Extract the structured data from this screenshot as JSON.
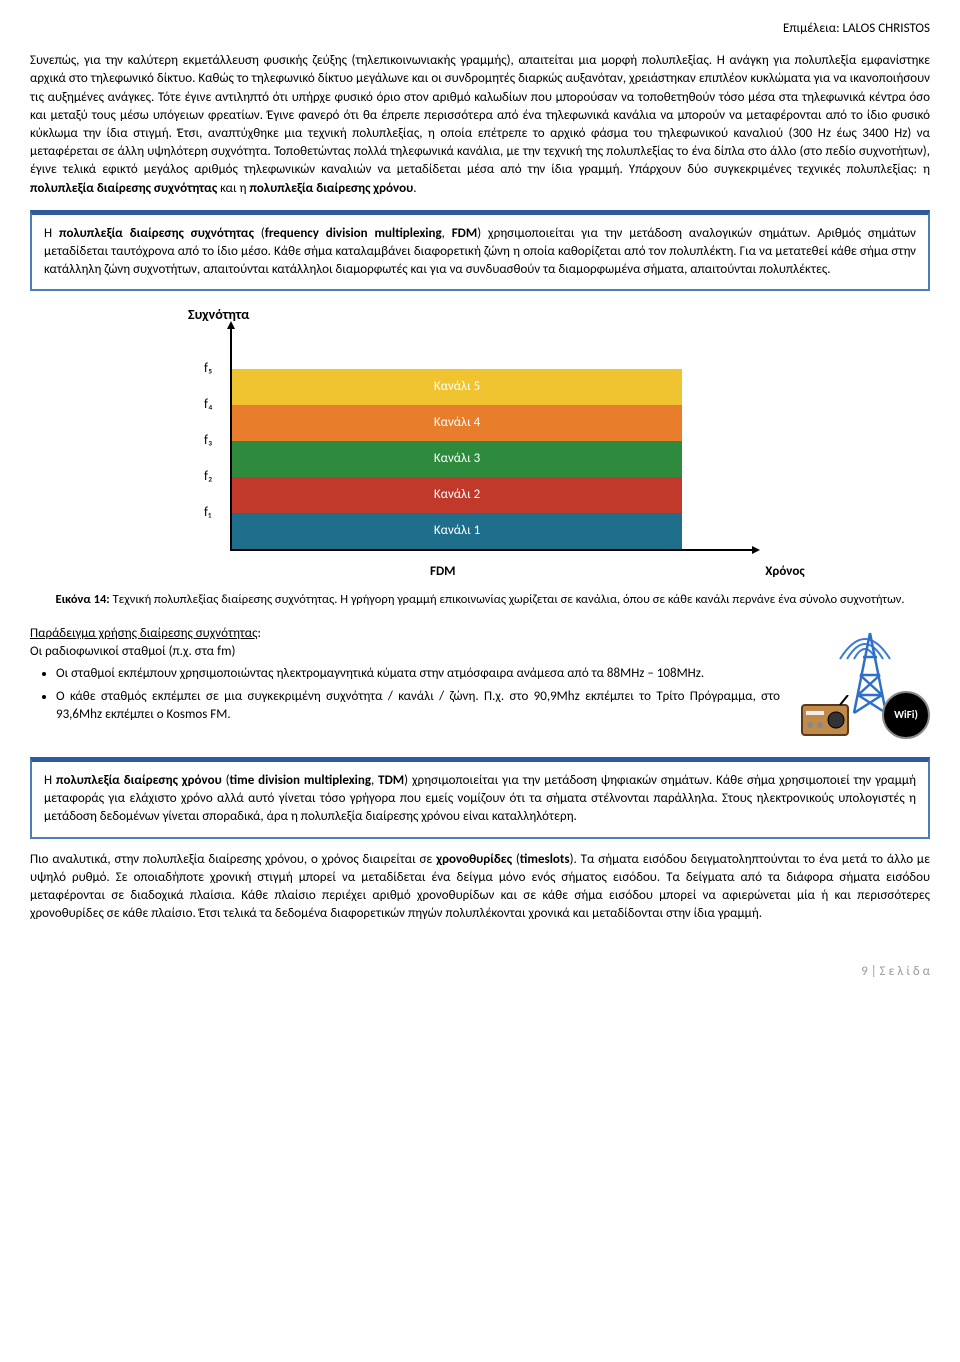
{
  "header": {
    "prefix": "Επιμέλεια:",
    "name": "LALOS CHRISTOS"
  },
  "para1": "Συνεπώς, για την καλύτερη εκμετάλλευση φυσικής ζεύξης (τηλεπικοινωνιακής γραμμής), απαιτείται μια μορφή πολυπλεξίας. Η ανάγκη για πολυπλεξία εμφανίστηκε αρχικά στο τηλεφωνικό δίκτυο. Καθώς το τηλεφωνικό δίκτυο μεγάλωνε και οι συνδρομητές διαρκώς αυξανόταν, χρειάστηκαν επιπλέον κυκλώματα για να ικανοποιήσουν τις αυξημένες ανάγκες. Τότε έγινε αντιληπτό ότι υπήρχε φυσικό όριο στον αριθμό καλωδίων που μπορούσαν να τοποθετηθούν τόσο μέσα στα τηλεφωνικά κέντρα όσο και μεταξύ τους μέσω υπόγειων φρεατίων. Έγινε φανερό ότι θα έπρεπε περισσότερα από ένα τηλεφωνικά κανάλια να μπορούν να μεταφέρονται από το ίδιο φυσικό κύκλωμα την ίδια στιγμή. Έτσι, αναπτύχθηκε μια τεχνική πολυπλεξίας, η οποία επέτρεπε το αρχικό φάσμα του τηλεφωνικού καναλιού (300 Hz έως 3400 Hz) να μεταφέρεται σε άλλη υψηλότερη συχνότητα. Τοποθετώντας πολλά τηλεφωνικά κανάλια, με την τεχνική της πολυπλεξίας το ένα δίπλα στο άλλο (στο πεδίο συχνοτήτων), έγινε τελικά εφικτό μεγάλος αριθμός τηλεφωνικών καναλιών να μεταδίδεται μέσα από την ίδια γραμμή. Υπάρχουν δύο συγκεκριμένες τεχνικές πολυπλεξίας: η ",
  "term1": "πολυπλεξία διαίρεσης συχνότητας",
  "para1_and": " και η ",
  "term2": "πολυπλεξία διαίρεσης χρόνου",
  "callout_fdm": {
    "pre": "Η ",
    "bold": "πολυπλεξία διαίρεσης συχνότητας",
    "paren": " (",
    "bold2": "frequency division multiplexing",
    "sep": ", ",
    "bold3": "FDM",
    "post": ") χρησιμοποιείται για την μετάδοση αναλογικών σημάτων. Αριθμός σημάτων μεταδίδεται ταυτόχρονα από το ίδιο μέσο. Κάθε σήμα καταλαμβάνει διαφορετική ζώνη η οποία καθορίζεται από τον πολυπλέκτη. Για να μετατεθεί κάθε σήμα στην κατάλληλη ζώνη συχνοτήτων, απαιτούνται κατάλληλοι διαμορφωτές και για να συνδυασθούν τα διαμορφωμένα σήματα, απαιτούνται πολυπλέκτες."
  },
  "chart": {
    "ylabel": "Συχνότητα",
    "xlabel_fdm": "FDM",
    "xlabel_time": "Χρόνος",
    "bands": [
      {
        "label": "Κανάλι 5",
        "tick": "f₅",
        "color": "#f0c330"
      },
      {
        "label": "Κανάλι 4",
        "tick": "f₄",
        "color": "#e87d2c"
      },
      {
        "label": "Κανάλι 3",
        "tick": "f₃",
        "color": "#2e8b3e"
      },
      {
        "label": "Κανάλι 2",
        "tick": "f₂",
        "color": "#c0392b"
      },
      {
        "label": "Κανάλι 1",
        "tick": "f₁",
        "color": "#1f6e8c"
      }
    ],
    "band_height": 36,
    "band_width": 450
  },
  "caption": {
    "lead": "Εικόνα 14: ",
    "text": "Τεχνική πολυπλεξίας διαίρεσης συχνότητας. Η γρήγορη γραμμή επικοινωνίας χωρίζεται σε κανάλια, όπου σε κάθε κανάλι περνάνε ένα σύνολο συχνοτήτων."
  },
  "example": {
    "title": "Παράδειγμα χρήσης διαίρεσης συχνότητας",
    "intro": "Οι ραδιοφωνικοί σταθμοί (π.χ. στα fm)",
    "bullets": [
      "Οι σταθμοί εκπέμπουν χρησιμοποιώντας ηλεκτρομαγνητικά κύματα στην ατμόσφαιρα ανάμεσα από τα 88MHz – 108MHz.",
      "Ο κάθε σταθμός εκπέμπει σε μια συγκεκριμένη συχνότητα / κανάλι / ζώνη. Π.χ. στο 90,9Mhz εκπέμπει το Τρίτο Πρόγραμμα, στο 93,6Mhz εκπέμπει ο Kosmos FM."
    ]
  },
  "wifi_label": "WiFi)",
  "callout_tdm": {
    "pre": "Η ",
    "bold": "πολυπλεξία διαίρεσης χρόνου",
    "paren": " (",
    "bold2": "time division multiplexing",
    "sep": ", ",
    "bold3": "TDM",
    "post": ") χρησιμοποιείται για την μετάδοση ψηφιακών σημάτων. Κάθε σήμα χρησιμοποιεί την γραμμή μεταφοράς για ελάχιστο χρόνο αλλά αυτό γίνεται τόσο γρήγορα που εμείς νομίζουν ότι τα σήματα στέλνονται παράλληλα. Στους ηλεκτρονικούς υπολογιστές η μετάδοση δεδομένων γίνεται σποραδικά, άρα η πολυπλεξία διαίρεσης χρόνου είναι καταλληλότερη."
  },
  "para_timeslots": {
    "pre": "Πιο αναλυτικά, στην πολυπλεξία διαίρεσης χρόνου, ο χρόνος διαιρείται σε ",
    "b1": "χρονοθυρίδες",
    "mid1": " (",
    "b2": "timeslots",
    "post": "). Τα σήματα εισόδου δειγματοληπτούνται το ένα μετά το άλλο με υψηλό ρυθμό. Σε οποιαδήποτε χρονική στιγμή μπορεί να μεταδίδεται ένα δείγμα μόνο ενός σήματος εισόδου. Τα δείγματα από τα διάφορα σήματα εισόδου μεταφέρονται σε διαδοχικά πλαίσια. Κάθε πλαίσιο περιέχει αριθμό χρονοθυρίδων και σε κάθε σήμα εισόδου μπορεί να αφιερώνεται μία ή και περισσότερες χρονοθυρίδες σε κάθε πλαίσιο. Έτσι τελικά τα δεδομένα διαφορετικών πηγών πολυπλέκονται χρονικά και μεταδίδονται στην ίδια γραμμή."
  },
  "footer": "9 | Σ ε λ ί δ α"
}
